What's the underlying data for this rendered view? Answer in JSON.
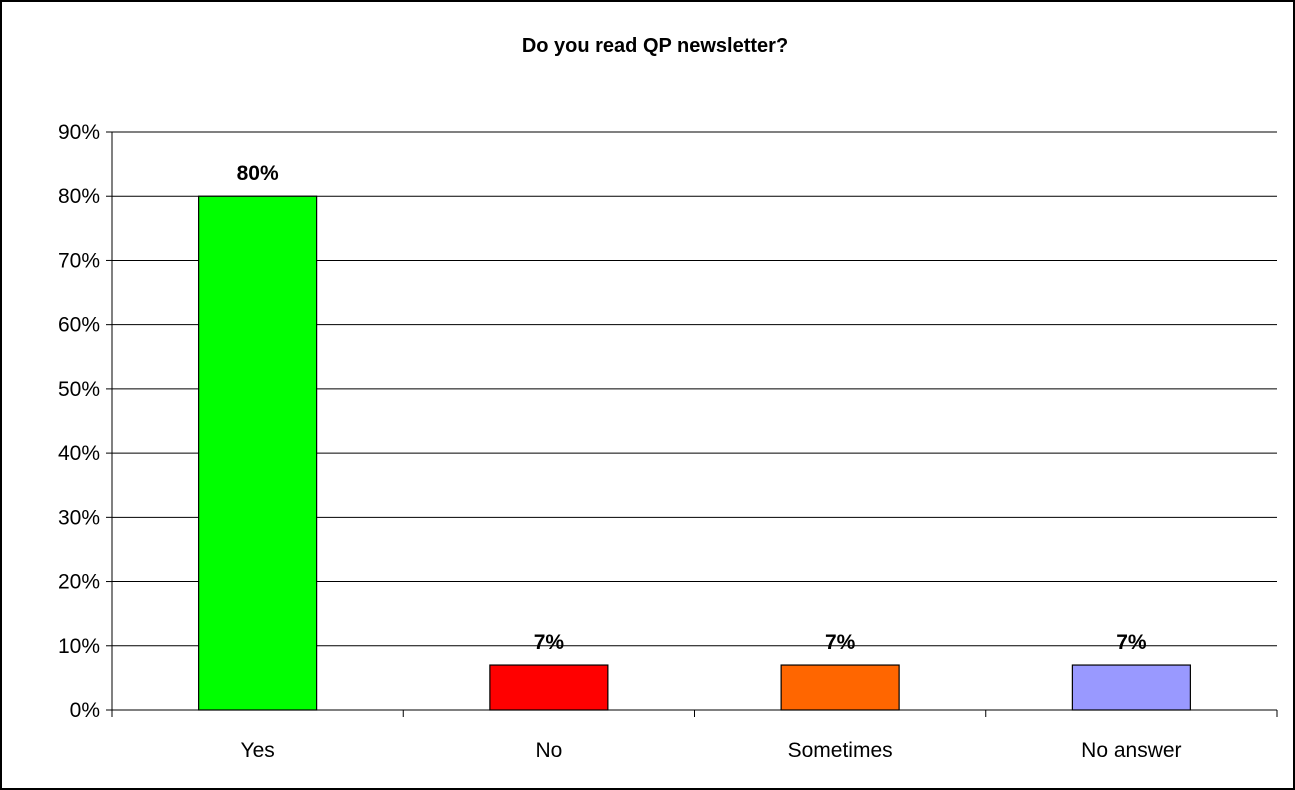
{
  "chart_data": {
    "type": "bar",
    "title": "Do you read QP newsletter?",
    "xlabel": "",
    "ylabel": "",
    "categories": [
      "Yes",
      "No",
      "Sometimes",
      "No answer"
    ],
    "values": [
      80,
      7,
      7,
      7
    ],
    "data_labels": [
      "80%",
      "7%",
      "7%",
      "7%"
    ],
    "bar_colors": [
      "#00ff00",
      "#ff0000",
      "#ff6600",
      "#9999ff"
    ],
    "ylim": [
      0,
      90
    ],
    "ytick_step": 10,
    "ytick_labels": [
      "0%",
      "10%",
      "20%",
      "30%",
      "40%",
      "50%",
      "60%",
      "70%",
      "80%",
      "90%"
    ],
    "grid": true,
    "legend": "none"
  }
}
